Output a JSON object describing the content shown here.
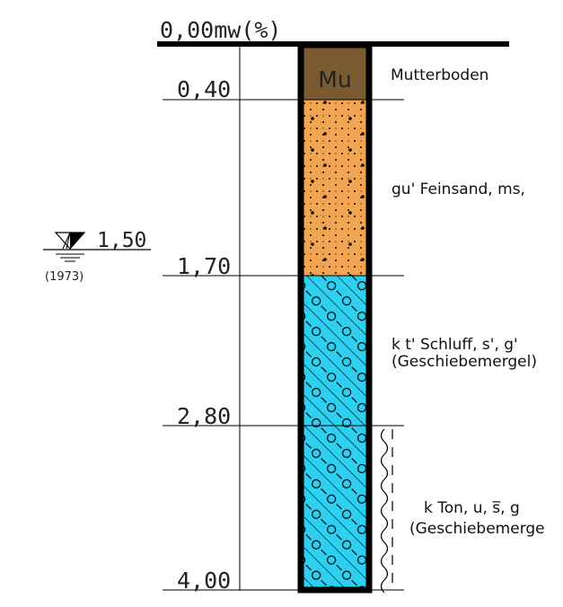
{
  "header": {
    "label": "0,00mw(%)"
  },
  "colors": {
    "topsoil": "#7a5a2f",
    "sand": "#f2a550",
    "silt": "#2dd0f0",
    "clay": "#2dd0f0",
    "frame": "#000000"
  },
  "layers": [
    {
      "code": "Mu",
      "top_depth": "0,00",
      "bottom_depth": "0,40",
      "description": [
        "Mutterboden"
      ]
    },
    {
      "code": "",
      "top_depth": "0,40",
      "bottom_depth": "1,70",
      "description": [
        "gu' Feinsand, ms,"
      ]
    },
    {
      "code": "",
      "top_depth": "1,70",
      "bottom_depth": "2,80",
      "description": [
        "k t' Schluff, s', g'",
        "(Geschiebemergel)"
      ]
    },
    {
      "code": "",
      "top_depth": "2,80",
      "bottom_depth": "4,00",
      "description": [
        "k Ton, u, s̅, g",
        "(Geschiebemerge"
      ]
    }
  ],
  "depth_labels": [
    "0,40",
    "1,70",
    "2,80",
    "4,00"
  ],
  "groundwater": {
    "level": "1,50",
    "year": "(1973)"
  }
}
